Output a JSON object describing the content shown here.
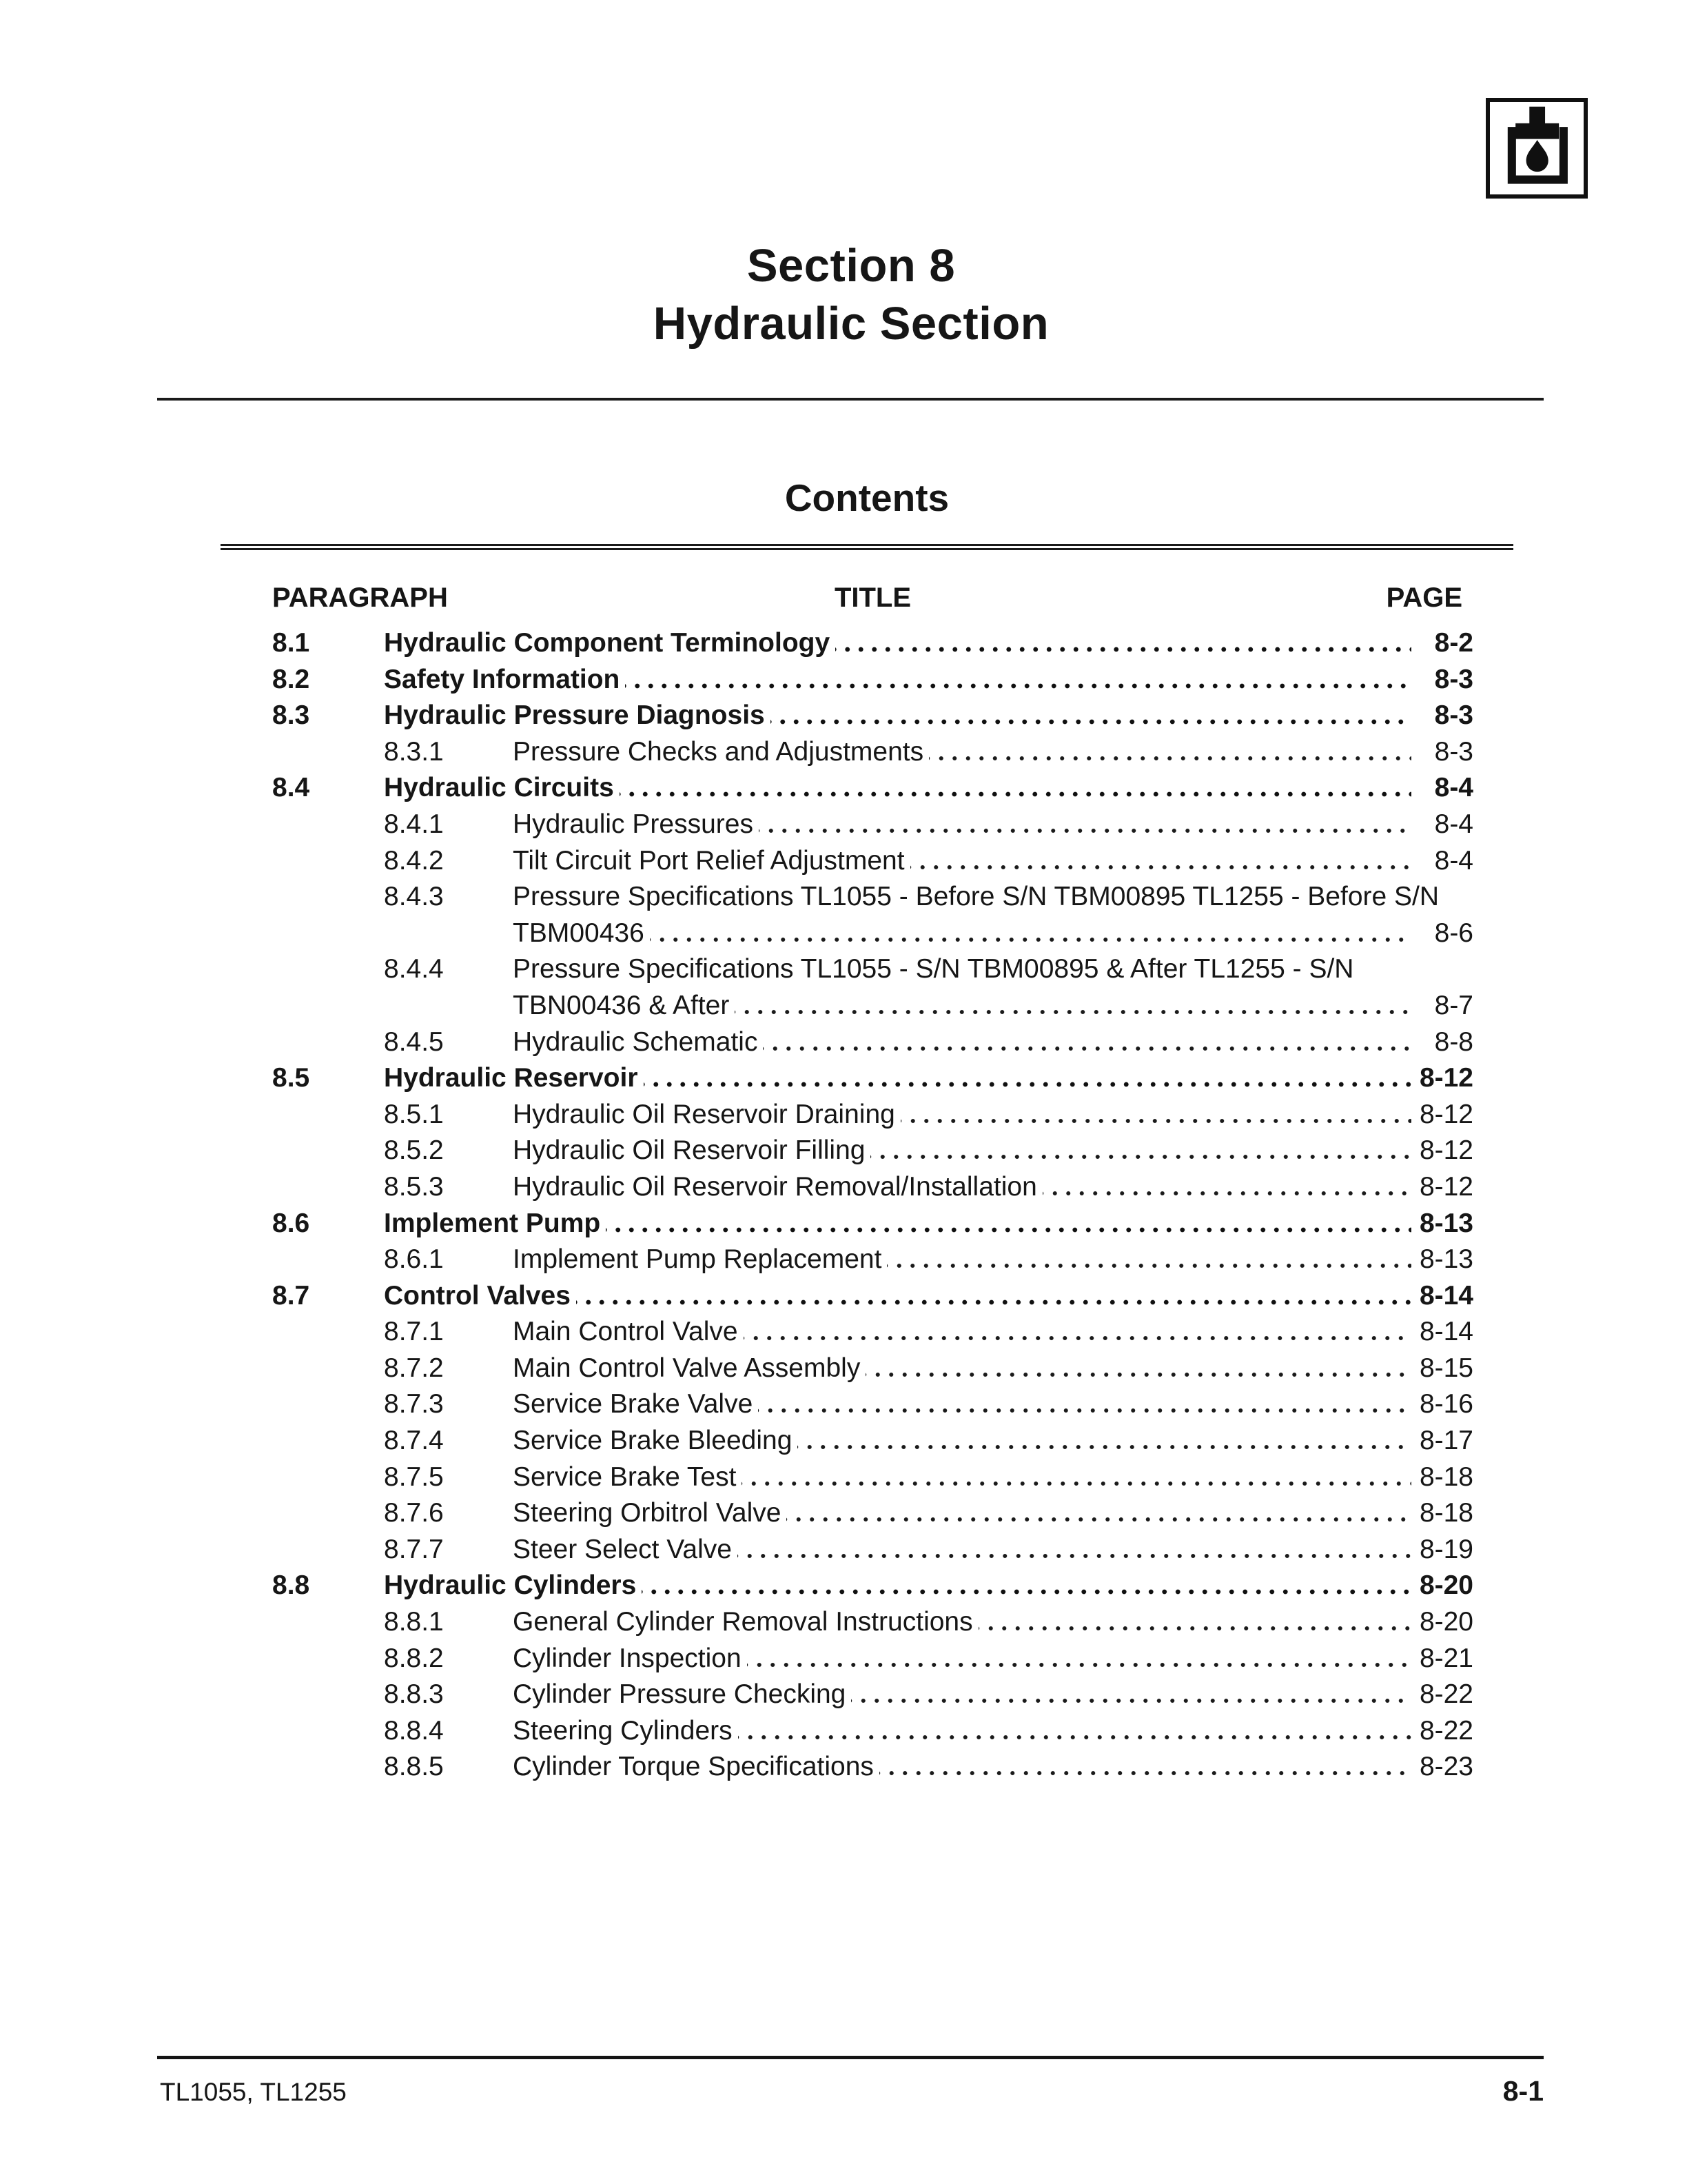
{
  "header": {
    "title_line1": "Section 8",
    "title_line2": "Hydraulic Section"
  },
  "logo": {
    "icon": "hydraulic-oil-piston-drop-icon"
  },
  "contents": {
    "heading": "Contents",
    "columns": {
      "paragraph": "PARAGRAPH",
      "title": "TITLE",
      "page": "PAGE"
    },
    "entries": [
      {
        "num": "8.1",
        "title": "Hydraulic Component Terminology",
        "page": "8-2",
        "bold": true,
        "level": 1
      },
      {
        "num": "8.2",
        "title": "Safety Information",
        "page": "8-3",
        "bold": true,
        "level": 1
      },
      {
        "num": "8.3",
        "title": "Hydraulic Pressure Diagnosis",
        "page": "8-3",
        "bold": true,
        "level": 1
      },
      {
        "num": "8.3.1",
        "title": "Pressure Checks and Adjustments",
        "page": "8-3",
        "bold": false,
        "level": 2
      },
      {
        "num": "8.4",
        "title": "Hydraulic Circuits",
        "page": "8-4",
        "bold": true,
        "level": 1
      },
      {
        "num": "8.4.1",
        "title": "Hydraulic Pressures",
        "page": "8-4",
        "bold": false,
        "level": 2
      },
      {
        "num": "8.4.2",
        "title": "Tilt Circuit Port Relief Adjustment",
        "page": "8-4",
        "bold": false,
        "level": 2
      },
      {
        "num": "8.4.3",
        "title": "Pressure Specifications TL1055 - Before S/N TBM00895 TL1255 - Before S/N",
        "title2": "TBM00436",
        "page": "8-6",
        "bold": false,
        "level": 2
      },
      {
        "num": "8.4.4",
        "title": "Pressure Specifications TL1055 - S/N TBM00895 & After TL1255 - S/N",
        "title2": "TBN00436 & After",
        "page": "8-7",
        "bold": false,
        "level": 2
      },
      {
        "num": "8.4.5",
        "title": "Hydraulic Schematic",
        "page": "8-8",
        "bold": false,
        "level": 2
      },
      {
        "num": "8.5",
        "title": "Hydraulic Reservoir",
        "page": "8-12",
        "bold": true,
        "level": 1
      },
      {
        "num": "8.5.1",
        "title": "Hydraulic Oil Reservoir Draining",
        "page": "8-12",
        "bold": false,
        "level": 2
      },
      {
        "num": "8.5.2",
        "title": "Hydraulic Oil Reservoir Filling",
        "page": "8-12",
        "bold": false,
        "level": 2
      },
      {
        "num": "8.5.3",
        "title": "Hydraulic Oil Reservoir Removal/Installation",
        "page": "8-12",
        "bold": false,
        "level": 2
      },
      {
        "num": "8.6",
        "title": "Implement Pump",
        "page": "8-13",
        "bold": true,
        "level": 1
      },
      {
        "num": "8.6.1",
        "title": "Implement Pump Replacement",
        "page": "8-13",
        "bold": false,
        "level": 2
      },
      {
        "num": "8.7",
        "title": "Control Valves",
        "page": "8-14",
        "bold": true,
        "level": 1
      },
      {
        "num": "8.7.1",
        "title": "Main Control Valve",
        "page": "8-14",
        "bold": false,
        "level": 2
      },
      {
        "num": "8.7.2",
        "title": "Main Control Valve Assembly",
        "page": "8-15",
        "bold": false,
        "level": 2
      },
      {
        "num": "8.7.3",
        "title": "Service Brake Valve",
        "page": "8-16",
        "bold": false,
        "level": 2
      },
      {
        "num": "8.7.4",
        "title": "Service Brake Bleeding",
        "page": "8-17",
        "bold": false,
        "level": 2
      },
      {
        "num": "8.7.5",
        "title": "Service Brake Test",
        "page": "8-18",
        "bold": false,
        "level": 2
      },
      {
        "num": "8.7.6",
        "title": "Steering Orbitrol Valve",
        "page": "8-18",
        "bold": false,
        "level": 2
      },
      {
        "num": "8.7.7",
        "title": "Steer Select Valve",
        "page": "8-19",
        "bold": false,
        "level": 2
      },
      {
        "num": "8.8",
        "title": "Hydraulic Cylinders",
        "page": "8-20",
        "bold": true,
        "level": 1
      },
      {
        "num": "8.8.1",
        "title": "General Cylinder Removal Instructions",
        "page": "8-20",
        "bold": false,
        "level": 2
      },
      {
        "num": "8.8.2",
        "title": "Cylinder Inspection",
        "page": "8-21",
        "bold": false,
        "level": 2
      },
      {
        "num": "8.8.3",
        "title": "Cylinder Pressure Checking",
        "page": "8-22",
        "bold": false,
        "level": 2
      },
      {
        "num": "8.8.4",
        "title": "Steering Cylinders",
        "page": "8-22",
        "bold": false,
        "level": 2
      },
      {
        "num": "8.8.5",
        "title": "Cylinder Torque Specifications",
        "page": "8-23",
        "bold": false,
        "level": 2
      }
    ]
  },
  "footer": {
    "left": "TL1055, TL1255",
    "right": "8-1"
  }
}
